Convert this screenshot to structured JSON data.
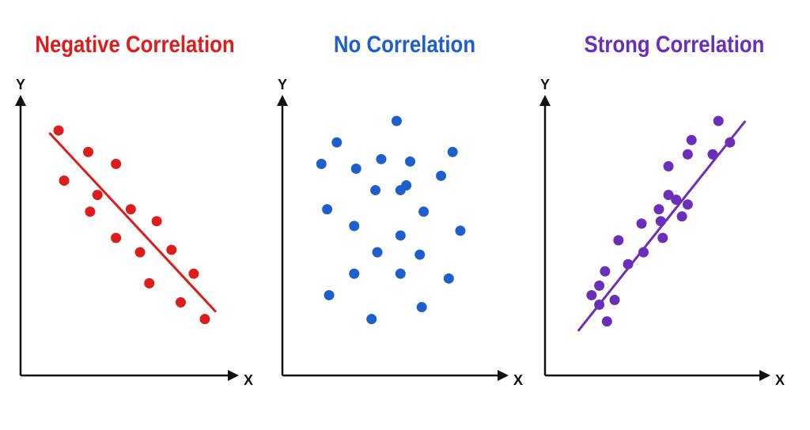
{
  "chart_data": [
    {
      "type": "scatter",
      "title": "Negative Correlation",
      "xlabel": "X",
      "ylabel": "Y",
      "color": "#dd1c1c",
      "xlim": [
        0,
        10
      ],
      "ylim": [
        0,
        10
      ],
      "trendline": true,
      "trend": [
        [
          0.7,
          9.5
        ],
        [
          9.7,
          2.0
        ]
      ],
      "points": [
        [
          1.2,
          9.6
        ],
        [
          1.5,
          7.5
        ],
        [
          2.8,
          8.7
        ],
        [
          2.9,
          6.2
        ],
        [
          3.3,
          6.9
        ],
        [
          4.3,
          8.2
        ],
        [
          4.3,
          5.1
        ],
        [
          5.1,
          6.3
        ],
        [
          5.6,
          4.5
        ],
        [
          6.1,
          3.2
        ],
        [
          6.5,
          5.8
        ],
        [
          7.3,
          4.6
        ],
        [
          7.8,
          2.4
        ],
        [
          8.5,
          3.6
        ],
        [
          9.1,
          1.7
        ]
      ]
    },
    {
      "type": "scatter",
      "title": "No Correlation",
      "xlabel": "X",
      "ylabel": "Y",
      "color": "#1f5fcc",
      "xlim": [
        0,
        10
      ],
      "ylim": [
        0,
        10
      ],
      "trendline": false,
      "points": [
        [
          1.2,
          8.2
        ],
        [
          2.0,
          9.1
        ],
        [
          5.1,
          10.0
        ],
        [
          1.5,
          6.3
        ],
        [
          3.0,
          8.0
        ],
        [
          4.3,
          8.4
        ],
        [
          5.8,
          8.3
        ],
        [
          8.0,
          8.7
        ],
        [
          7.4,
          7.7
        ],
        [
          4.0,
          7.1
        ],
        [
          5.3,
          7.1
        ],
        [
          5.6,
          7.3
        ],
        [
          2.9,
          5.6
        ],
        [
          5.3,
          5.2
        ],
        [
          6.5,
          6.2
        ],
        [
          8.4,
          5.4
        ],
        [
          4.1,
          4.5
        ],
        [
          6.3,
          4.4
        ],
        [
          2.9,
          3.6
        ],
        [
          5.3,
          3.6
        ],
        [
          7.8,
          3.4
        ],
        [
          1.6,
          2.7
        ],
        [
          6.4,
          2.2
        ],
        [
          3.8,
          1.7
        ]
      ]
    },
    {
      "type": "scatter",
      "title": "Strong Correlation",
      "xlabel": "X",
      "ylabel": "Y",
      "color": "#6a2fba",
      "xlim": [
        0,
        10
      ],
      "ylim": [
        0,
        10
      ],
      "trendline": true,
      "trend": [
        [
          0.9,
          1.2
        ],
        [
          9.6,
          10.0
        ]
      ],
      "points": [
        [
          1.6,
          2.7
        ],
        [
          2.0,
          3.1
        ],
        [
          2.0,
          2.3
        ],
        [
          2.3,
          3.7
        ],
        [
          2.4,
          1.6
        ],
        [
          2.8,
          2.5
        ],
        [
          3.0,
          5.0
        ],
        [
          3.5,
          4.0
        ],
        [
          4.2,
          5.7
        ],
        [
          4.3,
          4.5
        ],
        [
          5.1,
          6.3
        ],
        [
          5.2,
          5.8
        ],
        [
          5.3,
          5.1
        ],
        [
          5.6,
          6.9
        ],
        [
          5.6,
          8.1
        ],
        [
          6.0,
          6.7
        ],
        [
          6.3,
          6.0
        ],
        [
          6.6,
          8.6
        ],
        [
          6.6,
          6.5
        ],
        [
          6.8,
          9.2
        ],
        [
          7.9,
          8.6
        ],
        [
          8.2,
          10.0
        ],
        [
          8.8,
          9.1
        ]
      ]
    }
  ]
}
